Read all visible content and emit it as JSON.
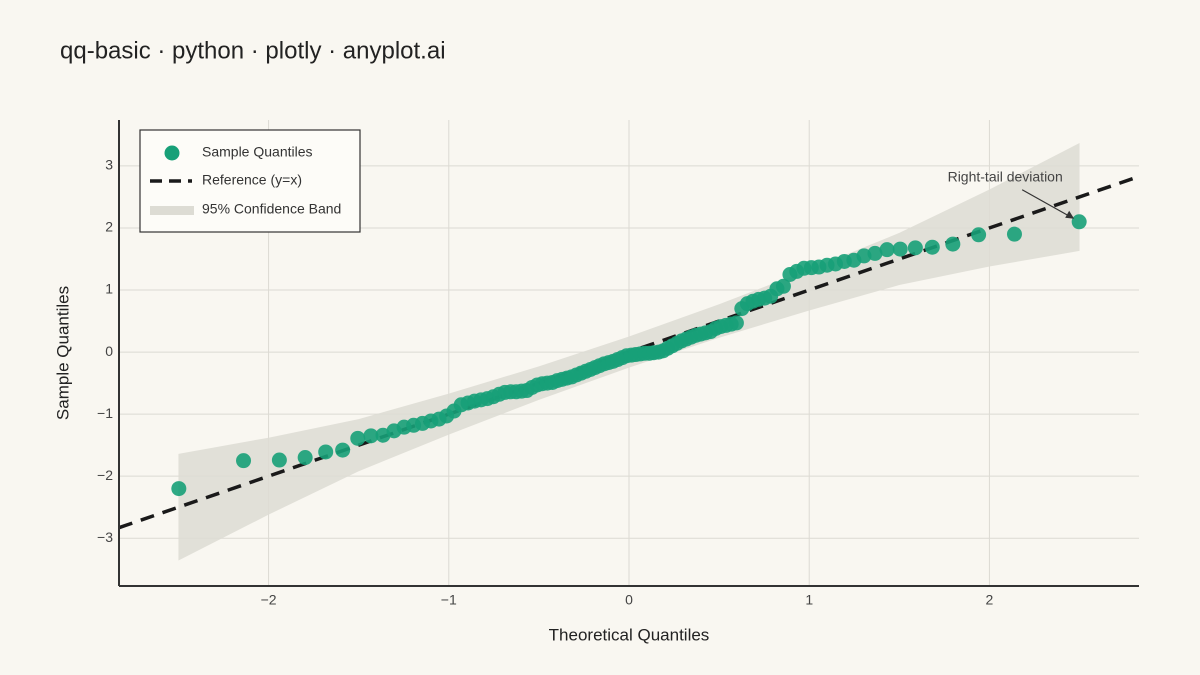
{
  "chart_data": {
    "type": "qq",
    "title": "qq-basic · python · plotly · anyplot.ai",
    "x_label": "Theoretical Quantiles",
    "y_label": "Sample Quantiles",
    "annotation": "Right-tail deviation",
    "xlim": [
      -2.83,
      2.83
    ],
    "ylim": [
      -3.77,
      3.74
    ],
    "xticks": [
      {
        "value": -2,
        "label": "−2"
      },
      {
        "value": -1,
        "label": "−1"
      },
      0,
      1,
      2
    ],
    "yticks": [
      {
        "value": -3,
        "label": "−3"
      },
      {
        "value": -2,
        "label": "−2"
      },
      {
        "value": -1,
        "label": "−1"
      },
      0,
      1,
      2,
      3
    ],
    "grid": true,
    "legend": "top-left",
    "series": [
      {
        "name": "Sample Quantiles",
        "color": "#17a078",
        "x": [
          -2.498,
          -2.139,
          -1.94,
          -1.797,
          -1.683,
          -1.589,
          -1.505,
          -1.432,
          -1.365,
          -1.304,
          -1.248,
          -1.195,
          -1.146,
          -1.099,
          -1.054,
          -1.012,
          -0.971,
          -0.931,
          -0.893,
          -0.857,
          -0.821,
          -0.786,
          -0.753,
          -0.72,
          -0.688,
          -0.657,
          -0.626,
          -0.596,
          -0.567,
          -0.538,
          -0.509,
          -0.481,
          -0.453,
          -0.425,
          -0.398,
          -0.371,
          -0.344,
          -0.318,
          -0.292,
          -0.266,
          -0.24,
          -0.214,
          -0.189,
          -0.164,
          -0.138,
          -0.113,
          -0.088,
          -0.063,
          -0.038,
          -0.013,
          0.013,
          0.038,
          0.063,
          0.088,
          0.113,
          0.138,
          0.164,
          0.189,
          0.214,
          0.24,
          0.266,
          0.292,
          0.318,
          0.344,
          0.371,
          0.398,
          0.425,
          0.453,
          0.481,
          0.509,
          0.538,
          0.567,
          0.596,
          0.626,
          0.657,
          0.688,
          0.72,
          0.753,
          0.786,
          0.821,
          0.857,
          0.893,
          0.931,
          0.971,
          1.012,
          1.054,
          1.099,
          1.146,
          1.195,
          1.248,
          1.304,
          1.365,
          1.432,
          1.505,
          1.589,
          1.683,
          1.797,
          1.94,
          2.139,
          2.498
        ],
        "values": [
          -2.2,
          -1.75,
          -1.74,
          -1.7,
          -1.61,
          -1.58,
          -1.39,
          -1.35,
          -1.34,
          -1.27,
          -1.21,
          -1.18,
          -1.15,
          -1.11,
          -1.08,
          -1.03,
          -0.95,
          -0.85,
          -0.82,
          -0.79,
          -0.77,
          -0.75,
          -0.72,
          -0.68,
          -0.65,
          -0.64,
          -0.64,
          -0.63,
          -0.62,
          -0.57,
          -0.53,
          -0.51,
          -0.5,
          -0.49,
          -0.46,
          -0.44,
          -0.42,
          -0.4,
          -0.37,
          -0.34,
          -0.31,
          -0.28,
          -0.25,
          -0.22,
          -0.19,
          -0.17,
          -0.15,
          -0.12,
          -0.09,
          -0.06,
          -0.05,
          -0.04,
          -0.03,
          -0.02,
          -0.02,
          -0.01,
          0.0,
          0.02,
          0.06,
          0.1,
          0.14,
          0.18,
          0.21,
          0.24,
          0.27,
          0.29,
          0.31,
          0.33,
          0.38,
          0.41,
          0.43,
          0.45,
          0.47,
          0.7,
          0.78,
          0.82,
          0.85,
          0.87,
          0.9,
          1.02,
          1.06,
          1.25,
          1.3,
          1.35,
          1.36,
          1.37,
          1.4,
          1.42,
          1.46,
          1.48,
          1.55,
          1.59,
          1.65,
          1.66,
          1.68,
          1.69,
          1.74,
          1.89,
          1.9,
          2.1
        ]
      },
      {
        "name": "Reference (y=x)",
        "color": "#1a1a1a",
        "x": [
          -2.83,
          2.83
        ],
        "values": [
          -2.83,
          2.83
        ]
      },
      {
        "name": "95% Confidence Band",
        "color": "#dddcd4",
        "x": [
          -2.5,
          -2,
          -1.5,
          -1,
          -0.5,
          0,
          0.5,
          1,
          1.5,
          2,
          2.5
        ],
        "lower": [
          -3.36,
          -2.62,
          -1.92,
          -1.33,
          -0.77,
          -0.25,
          0.23,
          0.67,
          1.08,
          1.38,
          1.63
        ],
        "upper": [
          -1.64,
          -1.38,
          -1.08,
          -0.67,
          -0.23,
          0.25,
          0.77,
          1.33,
          1.92,
          2.62,
          3.37
        ]
      }
    ]
  }
}
